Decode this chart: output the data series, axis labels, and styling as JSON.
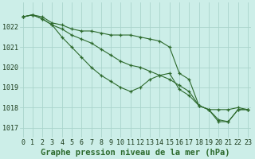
{
  "title": "Graphe pression niveau de la mer (hPa)",
  "x": [
    0,
    1,
    2,
    3,
    4,
    5,
    6,
    7,
    8,
    9,
    10,
    11,
    12,
    13,
    14,
    15,
    16,
    17,
    18,
    19,
    20,
    21,
    22,
    23
  ],
  "line_top": [
    1022.5,
    1022.6,
    1022.5,
    1022.2,
    1022.1,
    1021.9,
    1021.8,
    1021.8,
    1021.7,
    1021.6,
    1021.6,
    1021.6,
    1021.5,
    1021.4,
    1021.3,
    1021.0,
    1019.7,
    1019.4,
    1018.1,
    1017.9,
    1017.9,
    1017.9,
    1018.0,
    1017.9
  ],
  "line_mid": [
    1022.5,
    1022.6,
    1022.4,
    1022.1,
    1021.9,
    1021.6,
    1021.4,
    1021.2,
    1020.9,
    1020.6,
    1020.3,
    1020.1,
    1020.0,
    1019.8,
    1019.6,
    1019.4,
    1019.1,
    1018.8,
    1018.1,
    1017.9,
    1017.4,
    1017.3,
    1017.9,
    1017.9
  ],
  "line_bot": [
    1022.5,
    1022.6,
    1022.4,
    1022.1,
    1021.5,
    1021.0,
    1020.5,
    1020.0,
    1019.6,
    1019.3,
    1019.0,
    1018.8,
    1019.0,
    1019.4,
    1019.6,
    1019.7,
    1018.9,
    1018.6,
    1018.1,
    1017.9,
    1017.3,
    1017.3,
    1017.9,
    1017.9
  ],
  "line_color": "#2d6a2d",
  "bg_color": "#cceee8",
  "grid_color": "#aad4cc",
  "ylim": [
    1016.5,
    1023.2
  ],
  "yticks": [
    1017,
    1018,
    1019,
    1020,
    1021,
    1022
  ],
  "xticks": [
    0,
    1,
    2,
    3,
    4,
    5,
    6,
    7,
    8,
    9,
    10,
    11,
    12,
    13,
    14,
    15,
    16,
    17,
    18,
    19,
    20,
    21,
    22,
    23
  ],
  "title_fontsize": 7.5,
  "tick_fontsize": 6.0
}
